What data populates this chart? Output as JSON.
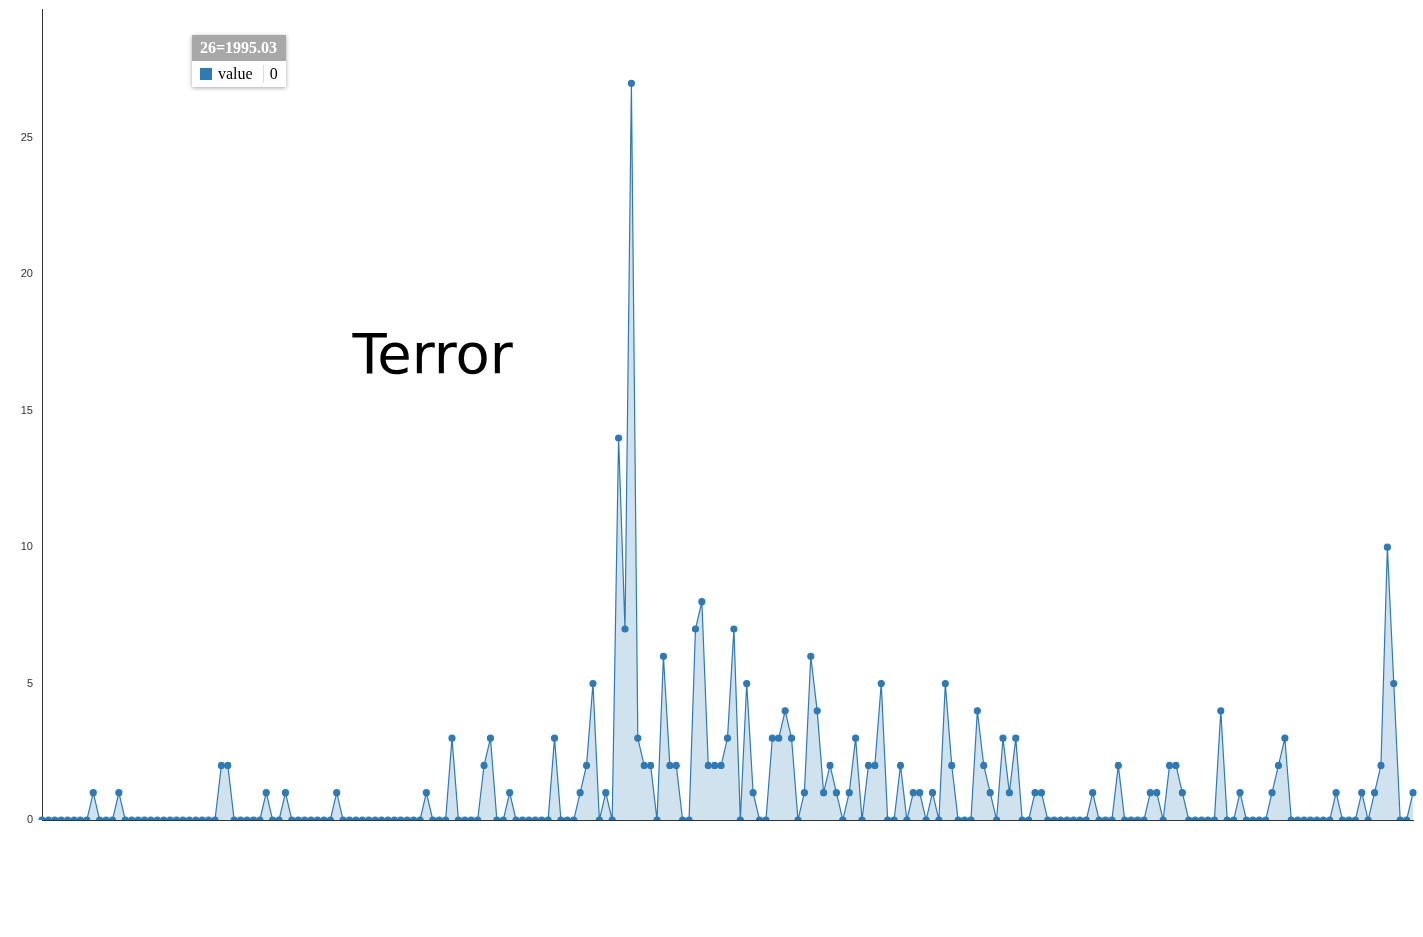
{
  "chart_data": {
    "type": "area",
    "title": "Terror",
    "annotations": [
      "26=1995.03",
      "0"
    ],
    "categories": [
      null,
      null,
      null,
      null,
      null,
      null,
      null,
      null,
      null,
      null,
      null,
      null,
      null,
      null,
      null,
      null,
      null,
      null,
      null,
      null,
      null,
      null,
      null,
      null,
      null,
      null,
      null,
      null,
      null,
      null,
      null,
      null,
      null,
      null,
      null,
      null,
      null,
      null,
      null,
      null,
      null,
      null,
      null,
      null,
      null,
      null,
      null,
      null,
      null,
      null,
      null,
      null,
      null,
      null,
      null,
      null,
      null,
      null,
      null,
      null,
      null,
      null,
      null,
      null,
      null,
      null,
      null,
      null,
      null,
      null,
      null,
      null,
      null,
      null,
      null,
      null,
      null,
      null,
      null,
      null,
      null,
      null,
      null,
      null,
      null,
      null,
      null,
      null,
      null,
      null,
      null,
      null,
      null,
      null,
      null,
      null,
      null,
      null,
      null,
      null,
      null,
      null,
      null,
      null,
      null,
      null,
      null,
      null,
      null,
      null,
      null,
      null,
      null,
      null,
      null,
      null,
      null,
      null,
      null,
      null,
      null,
      null,
      null,
      null,
      null,
      null,
      null,
      null,
      null,
      null,
      null,
      null,
      null,
      null,
      null,
      null,
      null,
      null,
      null,
      null,
      null,
      null,
      null,
      null,
      null,
      null,
      null,
      null,
      null,
      null,
      null,
      null,
      null,
      null,
      null,
      null,
      null,
      null,
      null,
      null,
      null,
      null,
      null,
      null,
      null,
      null,
      null,
      null,
      null,
      null,
      null,
      null,
      null,
      null,
      null,
      null,
      null,
      null,
      null,
      null,
      null,
      null,
      null,
      null,
      null,
      null,
      null,
      null,
      null,
      null,
      null,
      null,
      null,
      null,
      null,
      null,
      null,
      null,
      null,
      null,
      null,
      null,
      null,
      null,
      null,
      null,
      null,
      null,
      null,
      null,
      null,
      null,
      null,
      null,
      null
    ],
    "series": [
      {
        "name": "value",
        "color": "#2f7ab5",
        "values": [
          0,
          0,
          0,
          0,
          0,
          0,
          0,
          0,
          1,
          0,
          0,
          0,
          1,
          0,
          0,
          0,
          0,
          0,
          0,
          0,
          0,
          0,
          0,
          0,
          0,
          0,
          0,
          0,
          2,
          2,
          0,
          0,
          0,
          0,
          0,
          1,
          0,
          0,
          1,
          0,
          0,
          0,
          0,
          0,
          0,
          0,
          1,
          0,
          0,
          0,
          0,
          0,
          0,
          0,
          0,
          0,
          0,
          0,
          0,
          0,
          1,
          0,
          0,
          0,
          3,
          0,
          0,
          0,
          0,
          2,
          3,
          0,
          0,
          1,
          0,
          0,
          0,
          0,
          0,
          0,
          3,
          0,
          0,
          0,
          1,
          2,
          5,
          0,
          1,
          0,
          14,
          7,
          27,
          3,
          2,
          2,
          0,
          6,
          2,
          2,
          0,
          0,
          7,
          8,
          2,
          2,
          2,
          3,
          7,
          0,
          5,
          1,
          0,
          0,
          3,
          3,
          4,
          3,
          0,
          1,
          6,
          4,
          1,
          2,
          1,
          0,
          1,
          3,
          0,
          2,
          2,
          5,
          0,
          0,
          2,
          0,
          1,
          1,
          0,
          1,
          0,
          5,
          2,
          0,
          0,
          0,
          4,
          2,
          1,
          0,
          3,
          1,
          3,
          0,
          0,
          1,
          1,
          0,
          0,
          0,
          0,
          0,
          0,
          0,
          1,
          0,
          0,
          0,
          2,
          0,
          0,
          0,
          0,
          1,
          1,
          0,
          2,
          2,
          1,
          0,
          0,
          0,
          0,
          0,
          4,
          0,
          0,
          1,
          0,
          0,
          0,
          0,
          1,
          2,
          3,
          0,
          0,
          0,
          0,
          0,
          0,
          0,
          1,
          0,
          0,
          0,
          1,
          0,
          1,
          2,
          10,
          5,
          0,
          0,
          1
        ]
      }
    ],
    "ylim": [
      0,
      29.7
    ],
    "yticks": [
      0,
      5,
      10,
      15,
      20,
      25
    ],
    "grid": false,
    "legend": "top left",
    "marker": "circle",
    "line_style": "solid",
    "tick_labels": "y"
  }
}
